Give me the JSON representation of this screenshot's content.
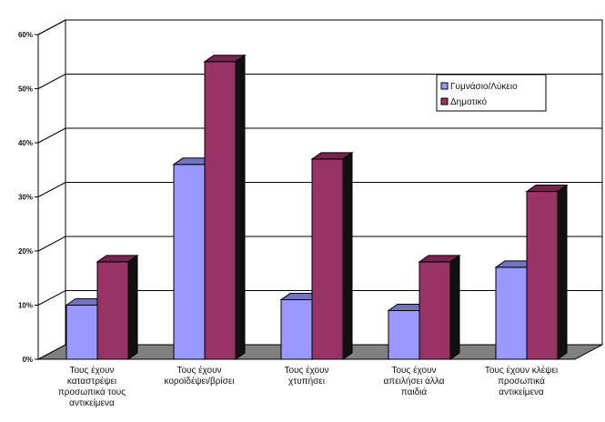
{
  "chart_data": {
    "type": "bar",
    "title": "",
    "xlabel": "",
    "ylabel": "",
    "ylim": [
      0,
      60
    ],
    "yticks": [
      "0%",
      "10%",
      "20%",
      "30%",
      "40%",
      "50%",
      "60%"
    ],
    "y_unit": "%",
    "grid": true,
    "legend_position": "top-right",
    "categories": [
      [
        "Τους έχουν",
        "καταστρέψει",
        "προσωπικά τους",
        "αντικείμενα"
      ],
      [
        "Τους έχουν",
        "κοροϊδέψει/βρίσει"
      ],
      [
        "Τους έχουν",
        "χτυπήσει"
      ],
      [
        "Τους έχουν",
        "απειλήσει άλλα",
        "παιδιά"
      ],
      [
        "Τους έχουν κλέψει",
        "προσωπικά",
        "αντικείμενα"
      ]
    ],
    "series": [
      {
        "name": "Γυμνάσιο/Λύκειο",
        "color": "#9999ff",
        "values": [
          10,
          36,
          11,
          9,
          17
        ]
      },
      {
        "name": "Δημοτικό",
        "color": "#993366",
        "values": [
          18,
          55,
          37,
          18,
          31
        ]
      }
    ],
    "colors": {
      "floor": "#808080",
      "grid": "#000000",
      "background": "#ffffff"
    }
  }
}
